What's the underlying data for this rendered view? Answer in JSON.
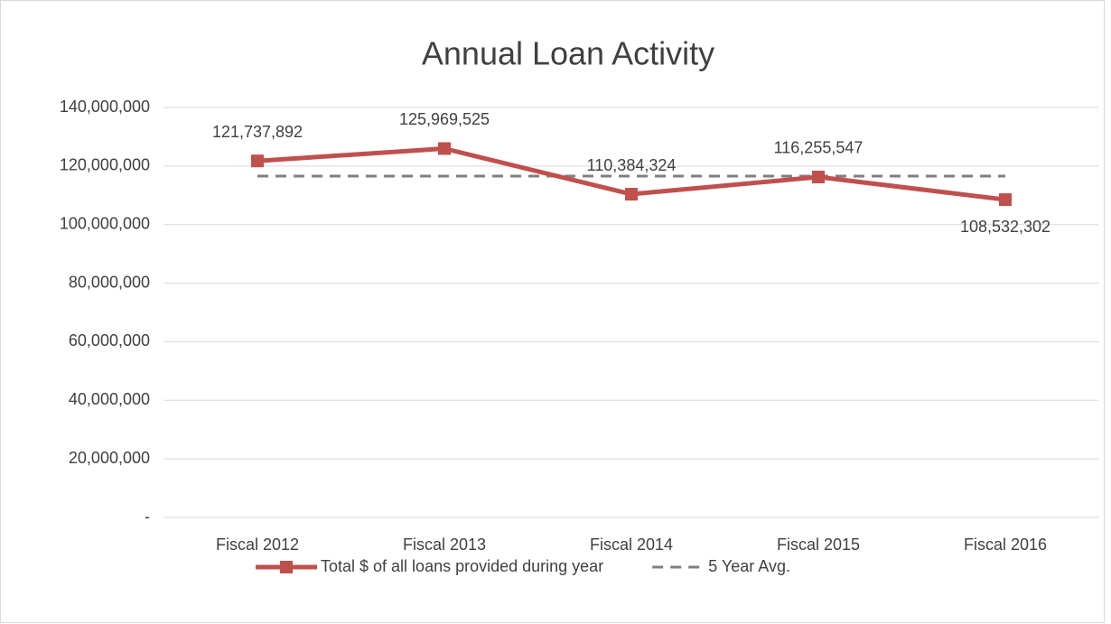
{
  "chart_data": {
    "type": "line",
    "title": "Annual Loan Activity",
    "categories": [
      "Fiscal 2012",
      "Fiscal 2013",
      "Fiscal 2014",
      "Fiscal 2015",
      "Fiscal 2016"
    ],
    "series": [
      {
        "name": "Total $ of all loans provided during year",
        "color": "#c0504d",
        "values": [
          121737892,
          125969525,
          110384324,
          116255547,
          108532302
        ],
        "value_labels": [
          "121,737,892",
          "125,969,525",
          "110,384,324",
          "116,255,547",
          "108,532,302"
        ]
      },
      {
        "name": "5 Year Avg.",
        "color": "#7f7f7f",
        "dashed": true,
        "values": [
          116575918,
          116575918,
          116575918,
          116575918,
          116575918
        ]
      }
    ],
    "ylim": [
      0,
      140000000
    ],
    "yticks": [
      {
        "value": 0,
        "label": "-"
      },
      {
        "value": 20000000,
        "label": "20,000,000"
      },
      {
        "value": 40000000,
        "label": "40,000,000"
      },
      {
        "value": 60000000,
        "label": "60,000,000"
      },
      {
        "value": 80000000,
        "label": "80,000,000"
      },
      {
        "value": 100000000,
        "label": "100,000,000"
      },
      {
        "value": 120000000,
        "label": "120,000,000"
      },
      {
        "value": 140000000,
        "label": "140,000,000"
      }
    ],
    "grid": true,
    "legend": "bottom"
  }
}
